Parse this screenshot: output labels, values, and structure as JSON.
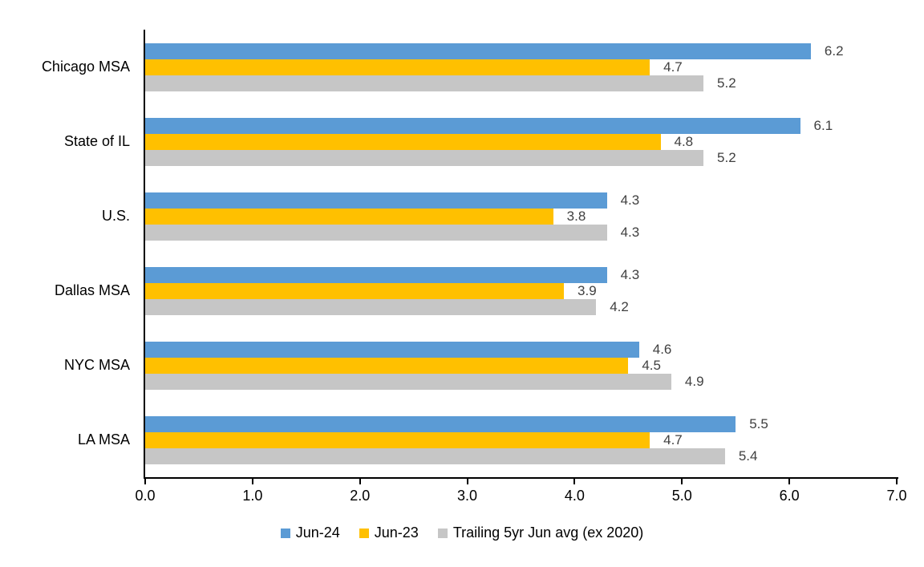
{
  "chart_data": {
    "type": "bar",
    "orientation": "horizontal",
    "title": "",
    "xlabel": "",
    "ylabel": "",
    "categories": [
      "Chicago MSA",
      "State of IL",
      "U.S.",
      "Dallas MSA",
      "NYC MSA",
      "LA MSA"
    ],
    "series": [
      {
        "name": "Jun-24",
        "color": "#5B9BD5",
        "values": [
          6.2,
          6.1,
          4.3,
          4.3,
          4.6,
          5.5
        ]
      },
      {
        "name": "Jun-23",
        "color": "#FFC000",
        "values": [
          4.7,
          4.8,
          3.8,
          3.9,
          4.5,
          4.7
        ]
      },
      {
        "name": "Trailing 5yr Jun avg (ex 2020)",
        "color": "#C6C6C6",
        "values": [
          5.2,
          5.2,
          4.3,
          4.2,
          4.9,
          5.4
        ]
      }
    ],
    "xlim": [
      0,
      7
    ],
    "x_ticks": [
      "0.0",
      "1.0",
      "2.0",
      "3.0",
      "4.0",
      "5.0",
      "6.0",
      "7.0"
    ],
    "grid": false,
    "legend_position": "bottom",
    "data_labels": true,
    "data_label_decimals": 1,
    "axis_color": "#000000",
    "data_label_color": "#404040",
    "category_label_color": "#000000"
  }
}
